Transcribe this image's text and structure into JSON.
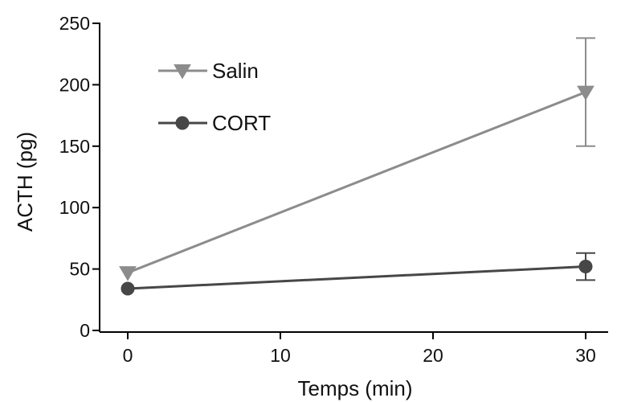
{
  "chart_data": {
    "type": "line",
    "xlabel": "Temps (min)",
    "ylabel": "ACTH (pg)",
    "x": [
      0,
      30
    ],
    "xticks": [
      0,
      10,
      20,
      30
    ],
    "yticks": [
      0,
      50,
      100,
      150,
      200,
      250
    ],
    "xlim": [
      0,
      30
    ],
    "ylim": [
      0,
      250
    ],
    "legend_position": "top-left",
    "series": [
      {
        "name": "Salin",
        "marker": "triangle-down",
        "color": "#8c8c8c",
        "values": [
          47,
          194
        ],
        "errors": [
          0,
          44
        ]
      },
      {
        "name": "CORT",
        "marker": "circle",
        "color": "#474747",
        "values": [
          34,
          52
        ],
        "errors": [
          0,
          11
        ]
      }
    ]
  }
}
